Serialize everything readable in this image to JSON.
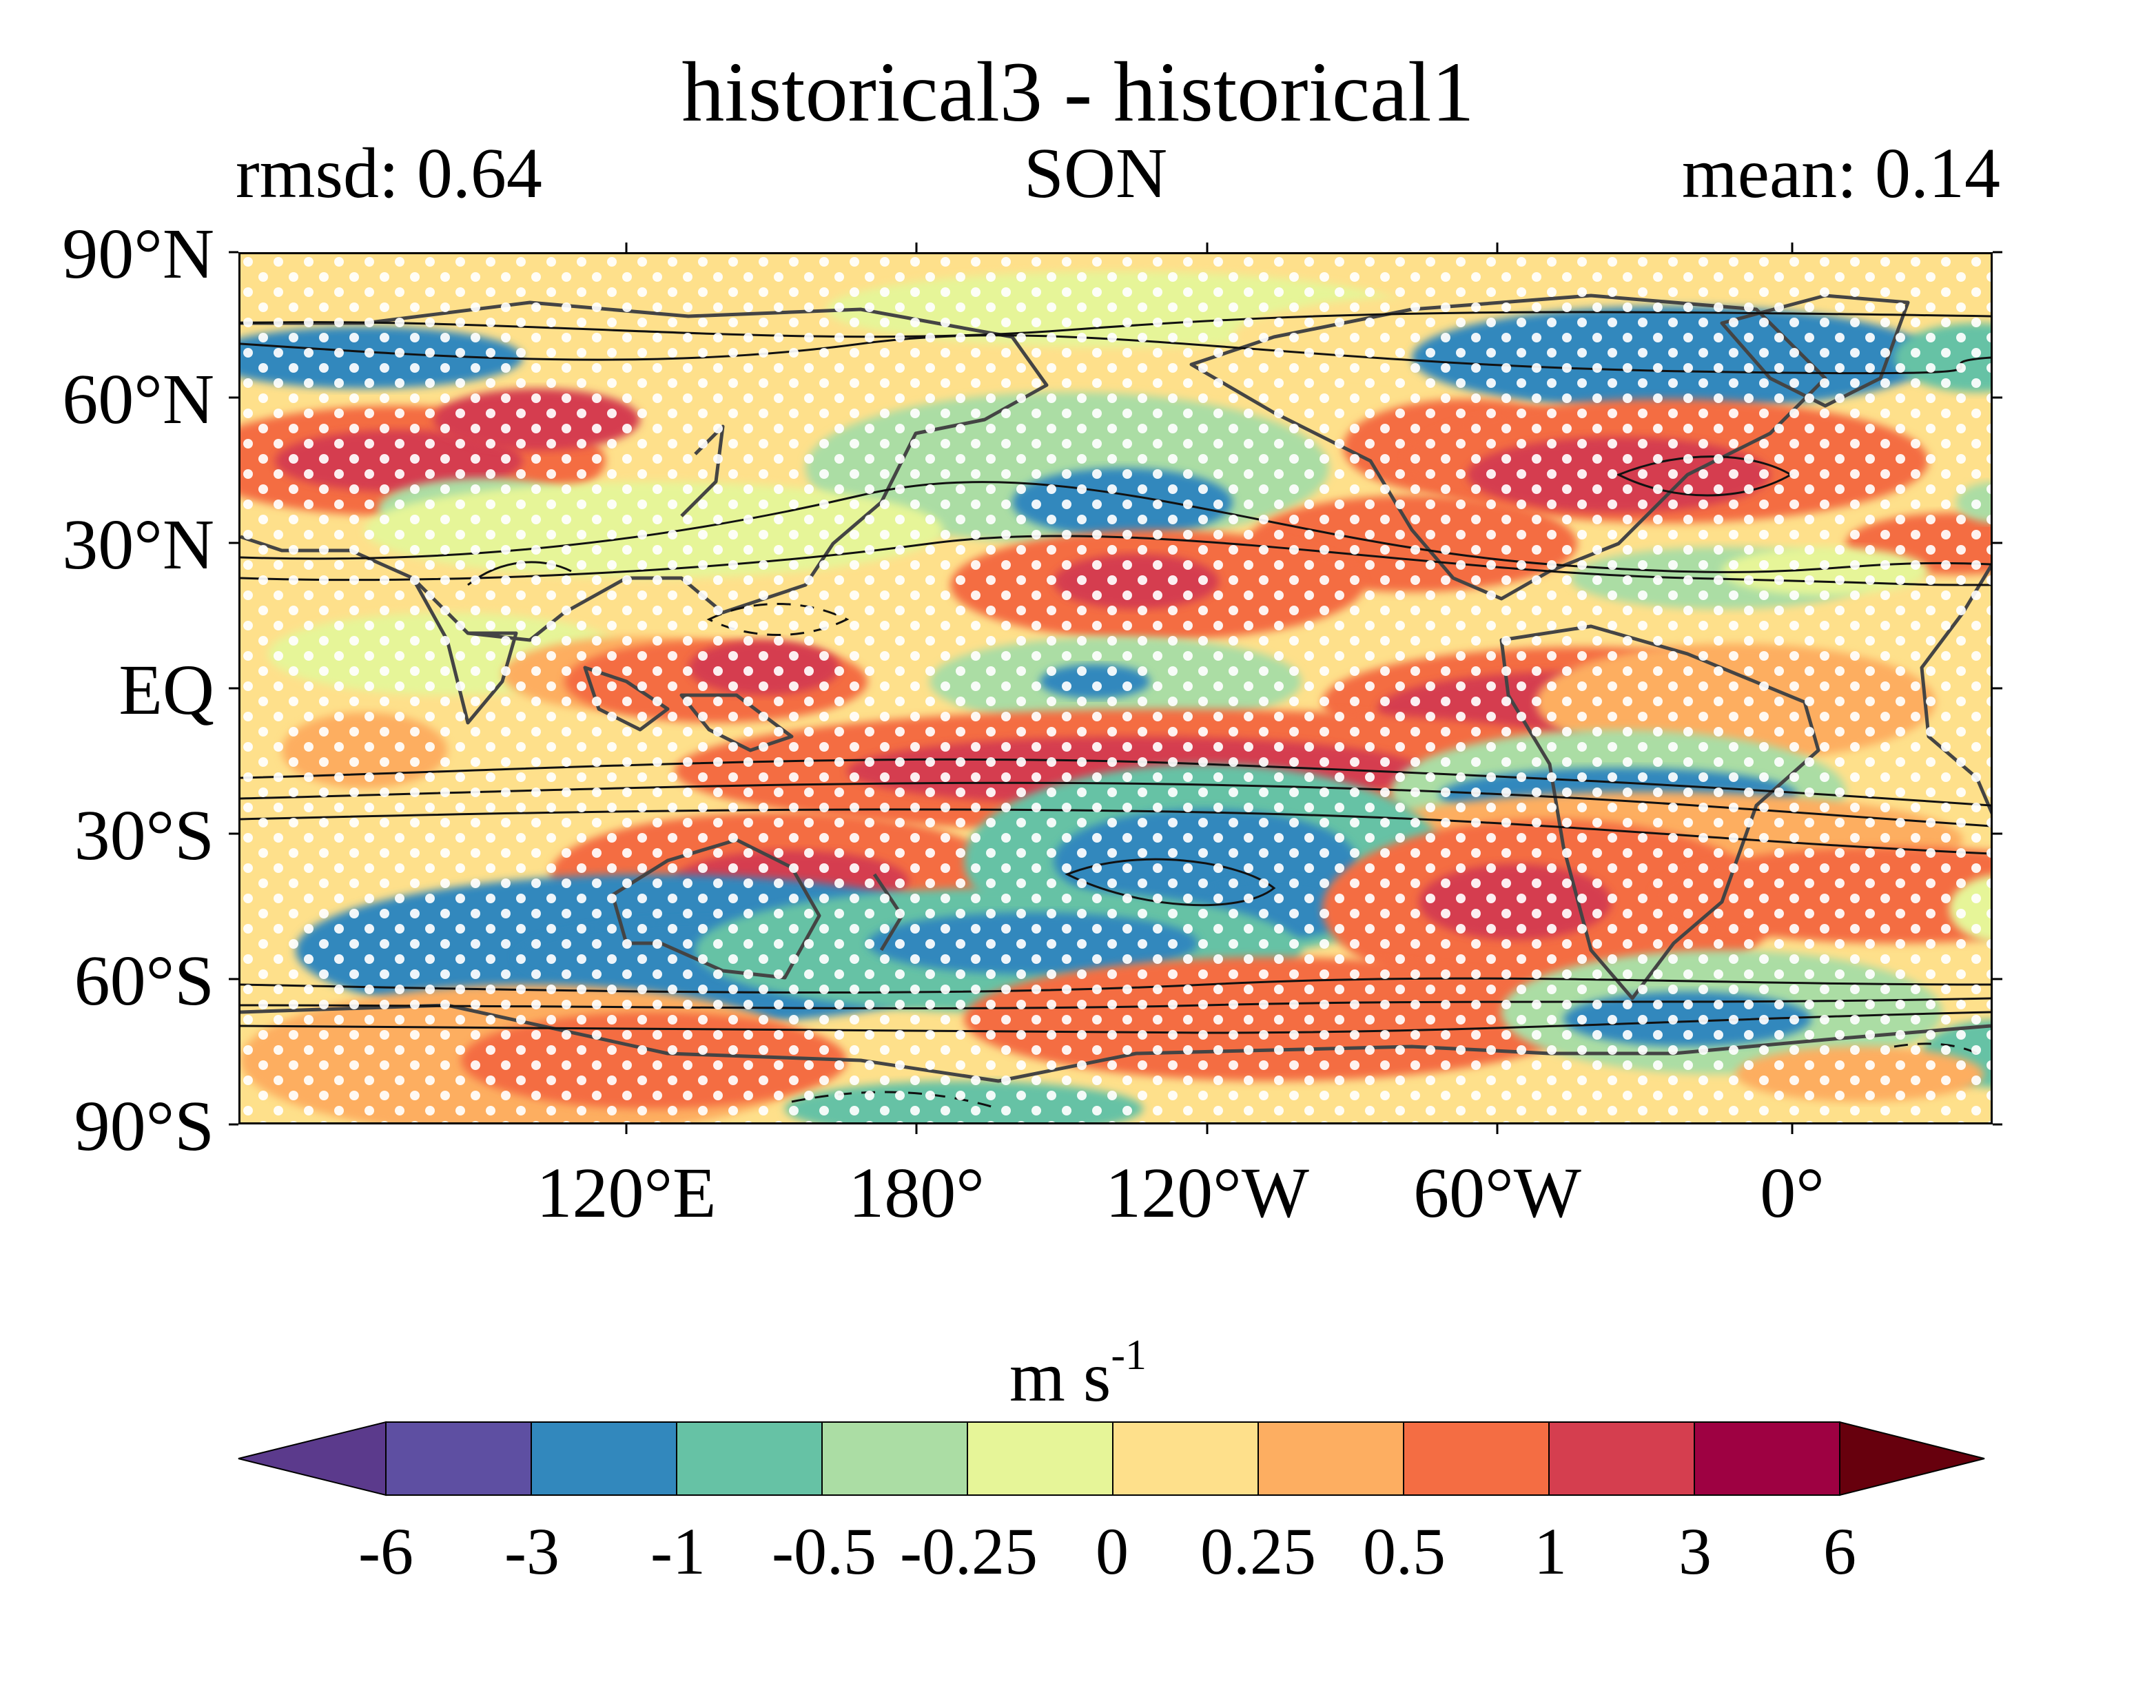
{
  "title": "historical3 - historical1",
  "left_stat": "rmsd: 0.64",
  "season": "SON",
  "right_stat": "mean: 0.14",
  "lat_labels": [
    "90°N",
    "60°N",
    "30°N",
    "EQ",
    "30°S",
    "60°S",
    "90°S"
  ],
  "lon_labels": [
    "120°E",
    "180°",
    "120°W",
    "60°W",
    "0°"
  ],
  "colorbar": {
    "units_base": "m s",
    "units_exp": "-1",
    "tick_labels": [
      "-6",
      "-3",
      "-1",
      "-0.5",
      "-0.25",
      "0",
      "0.25",
      "0.5",
      "1",
      "3",
      "6"
    ],
    "levels": [
      -6,
      -3,
      -1,
      -0.5,
      -0.25,
      0,
      0.25,
      0.5,
      1,
      3,
      6
    ],
    "colors": [
      "#5e4fa2",
      "#3288bd",
      "#66c2a5",
      "#abdda4",
      "#e6f598",
      "#fee08b",
      "#fdae61",
      "#f46d43",
      "#d53e4f",
      "#9e0142"
    ],
    "under_color": "#5b3a8c",
    "over_color": "#67000d",
    "extend": "both"
  },
  "map": {
    "projection": "equirectangular",
    "lon_range": [
      40,
      403
    ],
    "lat_range": [
      -90,
      90
    ],
    "stippling": "white dots mark significant differences",
    "contours": "black climatology contours, dashed negative"
  }
}
